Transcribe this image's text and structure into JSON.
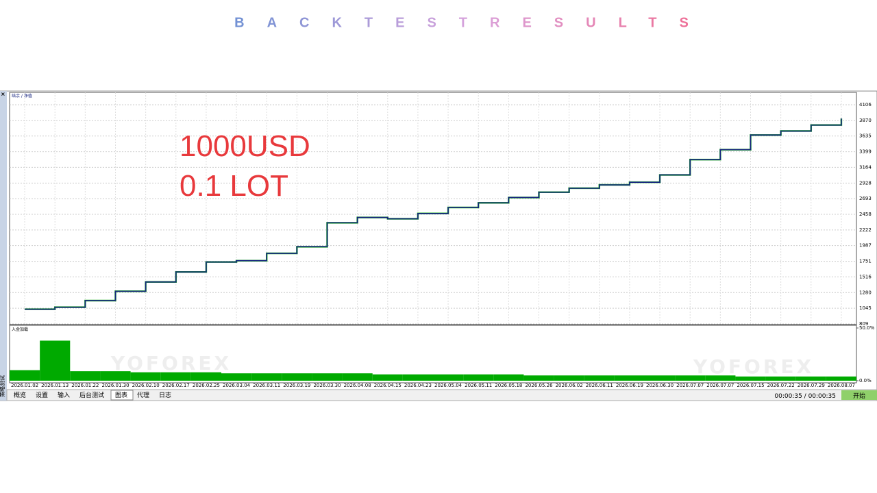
{
  "page": {
    "title": "BACKTESTRESULTS",
    "watermark": "YOFOREX"
  },
  "chart_data": [
    {
      "type": "line",
      "legend": "结余 / 净值",
      "annotations": [
        "1000USD",
        "0.1 LOT"
      ],
      "x": [
        "2026.01.02",
        "2026.01.13",
        "2026.01.22",
        "2026.01.30",
        "2026.02.10",
        "2026.02.17",
        "2026.02.25",
        "2026.03.04",
        "2026.03.11",
        "2026.03.19",
        "2026.03.30",
        "2026.04.08",
        "2026.04.15",
        "2026.04.23",
        "2026.05.04",
        "2026.05.11",
        "2026.05.18",
        "2026.05.26",
        "2026.06.02",
        "2026.06.11",
        "2026.06.19",
        "2026.06.30",
        "2026.07.07",
        "2026.07.07",
        "2026.07.15",
        "2026.07.22",
        "2026.07.29",
        "2026.08.07"
      ],
      "series": [
        {
          "color": "#15237f",
          "values": [
            1030,
            1060,
            1160,
            1300,
            1440,
            1590,
            1740,
            1760,
            1870,
            1970,
            2330,
            2410,
            2390,
            2470,
            2560,
            2630,
            2710,
            2790,
            2850,
            2900,
            2940,
            3050,
            3280,
            3430,
            3650,
            3710,
            3800,
            3900
          ]
        }
      ],
      "ylim": [
        799,
        4291
      ],
      "yticks": [
        809,
        1045,
        1280,
        1516,
        1751,
        1987,
        2222,
        2458,
        2693,
        2928,
        3164,
        3399,
        3635,
        3870,
        4106
      ],
      "grid": true
    },
    {
      "type": "bar",
      "legend": "入金加载",
      "color": "#00aa00",
      "values": [
        10,
        38,
        9,
        9,
        8,
        8,
        8,
        7,
        7,
        7,
        7,
        7,
        6,
        6,
        6,
        6,
        6,
        5,
        5,
        5,
        5,
        5,
        5,
        5,
        4,
        4,
        4,
        4
      ],
      "ylim": [
        0,
        50
      ],
      "yticks": [
        {
          "value": 0,
          "label": "0.0%"
        },
        {
          "value": 50,
          "label": "50.0%"
        }
      ]
    }
  ],
  "ui": {
    "side": "策略测试",
    "tabs": [
      "概览",
      "设置",
      "输入",
      "后台测试",
      "图表",
      "代理",
      "日志"
    ],
    "active_tab": 4,
    "time": "00:00:35 / 00:00:35",
    "button": "开始"
  }
}
